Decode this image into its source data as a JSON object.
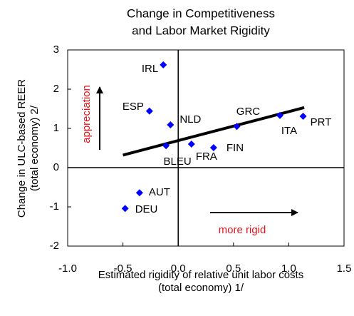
{
  "chart_data": {
    "type": "scatter",
    "title": [
      "Change in Competitiveness",
      "and Labor Market Rigidity"
    ],
    "x_label": [
      "Estimated rigidity of relative unit labor costs",
      "(total economy) 1/"
    ],
    "y_label": [
      "Change in ULC-based REER",
      "(total economy) 2/"
    ],
    "labels": [
      "IRL",
      "ESP",
      "NLD",
      "BLEU",
      "FRA",
      "FIN",
      "GRC",
      "ITA",
      "PRT",
      "AUT",
      "DEU"
    ],
    "x": [
      -0.135,
      -0.26,
      -0.07,
      -0.11,
      0.12,
      0.32,
      0.53,
      0.92,
      1.13,
      -0.35,
      -0.48
    ],
    "values": [
      2.62,
      1.44,
      1.09,
      0.56,
      0.6,
      0.51,
      1.05,
      1.33,
      1.31,
      -0.64,
      -1.04
    ],
    "color": "#0000ff",
    "trendline": {
      "x": [
        -0.5,
        1.14
      ],
      "y": [
        0.32,
        1.53
      ]
    },
    "annotations": [
      "appreciation",
      "more rigid"
    ],
    "xlim": [
      -1.0,
      1.5
    ],
    "ylim": [
      -2,
      3
    ],
    "xticks": [
      {
        "value": -1.0,
        "label": "-1.0"
      },
      -0.5,
      {
        "value": 0,
        "label": "0.0"
      },
      0.5,
      {
        "value": 1.0,
        "label": "1.0"
      },
      1.5
    ],
    "yticks": [
      -2,
      -1,
      0,
      1,
      2,
      3
    ]
  }
}
